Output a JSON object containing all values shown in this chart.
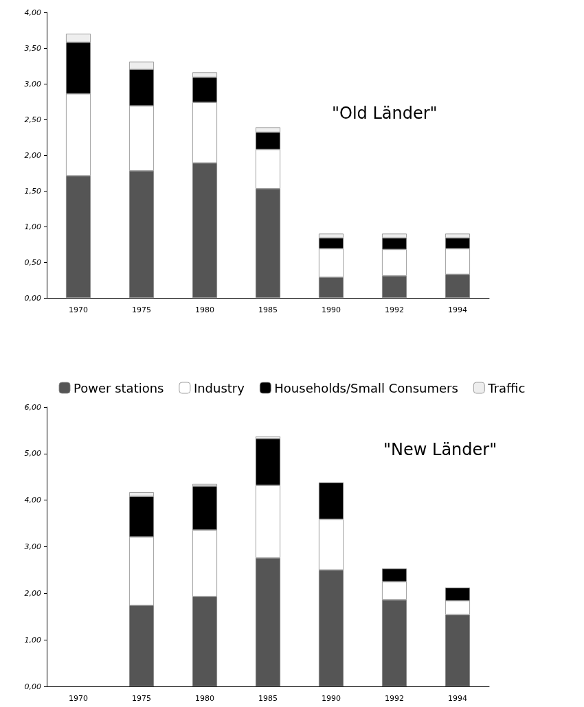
{
  "chart_data": [
    {
      "type": "bar",
      "title": "\"Old Länder\"",
      "stacked": true,
      "legend": "bottom",
      "grid": false,
      "categories": [
        "1970",
        "1975",
        "1980",
        "1985",
        "1990",
        "1992",
        "1994"
      ],
      "ylim": [
        0,
        4
      ],
      "yticks": [
        {
          "value": 0,
          "label": "0,00"
        },
        {
          "value": 0.5,
          "label": "0,50"
        },
        {
          "value": 1,
          "label": "1,00"
        },
        {
          "value": 1.5,
          "label": "1,50"
        },
        {
          "value": 2,
          "label": "2,00"
        },
        {
          "value": 2.5,
          "label": "2,50"
        },
        {
          "value": 3,
          "label": "3,00"
        },
        {
          "value": 3.5,
          "label": "3,50"
        },
        {
          "value": 4,
          "label": "4,00"
        }
      ],
      "series": [
        {
          "name": "Power stations",
          "color": "#555555",
          "values": [
            1.71,
            1.78,
            1.89,
            1.53,
            0.29,
            0.31,
            0.33
          ]
        },
        {
          "name": "Industry",
          "color": "#ffffff",
          "values": [
            1.15,
            0.91,
            0.85,
            0.55,
            0.4,
            0.37,
            0.36
          ]
        },
        {
          "name": "Households/Small Consumers",
          "color": "#000000",
          "values": [
            0.72,
            0.51,
            0.35,
            0.24,
            0.15,
            0.16,
            0.15
          ]
        },
        {
          "name": "Traffic",
          "color": "#eeeeee",
          "values": [
            0.12,
            0.11,
            0.07,
            0.07,
            0.06,
            0.06,
            0.06
          ]
        }
      ]
    },
    {
      "type": "bar",
      "title": "\"New Länder\"",
      "stacked": true,
      "legend": false,
      "grid": false,
      "categories": [
        "1970",
        "1975",
        "1980",
        "1985",
        "1990",
        "1992",
        "1994"
      ],
      "ylim": [
        0,
        6
      ],
      "yticks": [
        {
          "value": 0,
          "label": "0,00"
        },
        {
          "value": 1,
          "label": "1,00"
        },
        {
          "value": 2,
          "label": "2,00"
        },
        {
          "value": 3,
          "label": "3,00"
        },
        {
          "value": 4,
          "label": "4,00"
        },
        {
          "value": 5,
          "label": "5,00"
        },
        {
          "value": 6,
          "label": "6,00"
        }
      ],
      "series": [
        {
          "color": "#555555",
          "values": [
            null,
            1.74,
            1.93,
            2.76,
            2.5,
            1.86,
            1.54
          ]
        },
        {
          "color": "#ffffff",
          "values": [
            null,
            1.47,
            1.43,
            1.56,
            1.09,
            0.39,
            0.3
          ]
        },
        {
          "color": "#000000",
          "values": [
            null,
            0.87,
            0.94,
            1.0,
            0.79,
            0.28,
            0.28
          ]
        },
        {
          "color": "#eeeeee",
          "values": [
            null,
            0.09,
            0.05,
            0.05,
            null,
            null,
            null
          ]
        }
      ]
    }
  ]
}
